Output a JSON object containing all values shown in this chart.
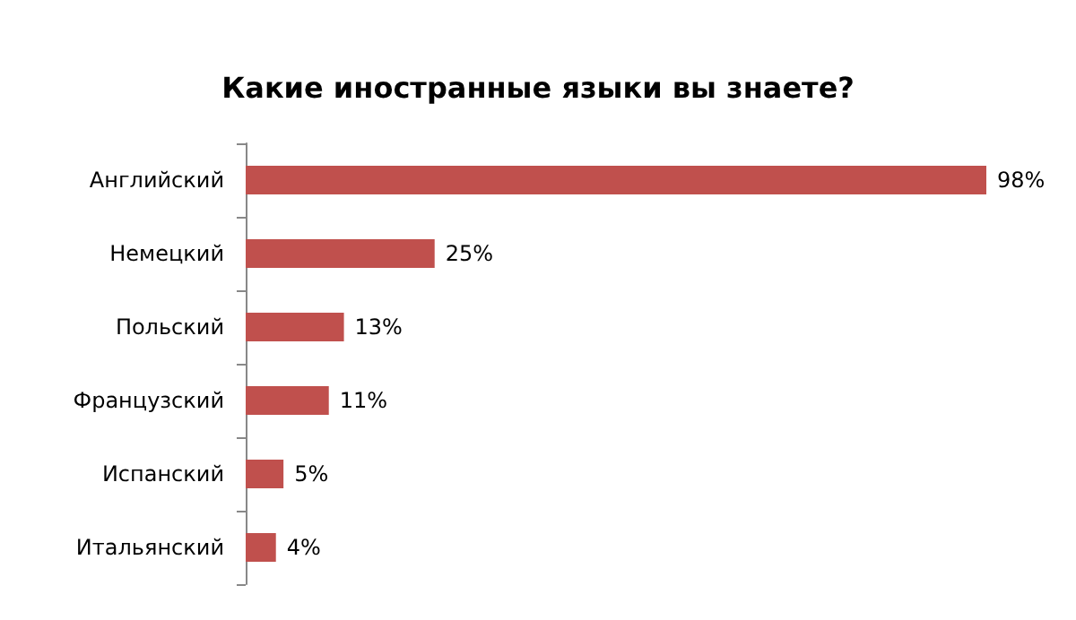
{
  "chart_data": {
    "type": "bar",
    "orientation": "horizontal",
    "title": "Какие иностранные языки вы знаете?",
    "categories": [
      "Английский",
      "Немецкий",
      "Польский",
      "Французский",
      "Испанский",
      "Итальянский"
    ],
    "values": [
      98,
      25,
      13,
      11,
      5,
      4
    ],
    "value_labels": [
      "98%",
      "25%",
      "13%",
      "11%",
      "5%",
      "4%"
    ],
    "color": "#c0504d"
  }
}
